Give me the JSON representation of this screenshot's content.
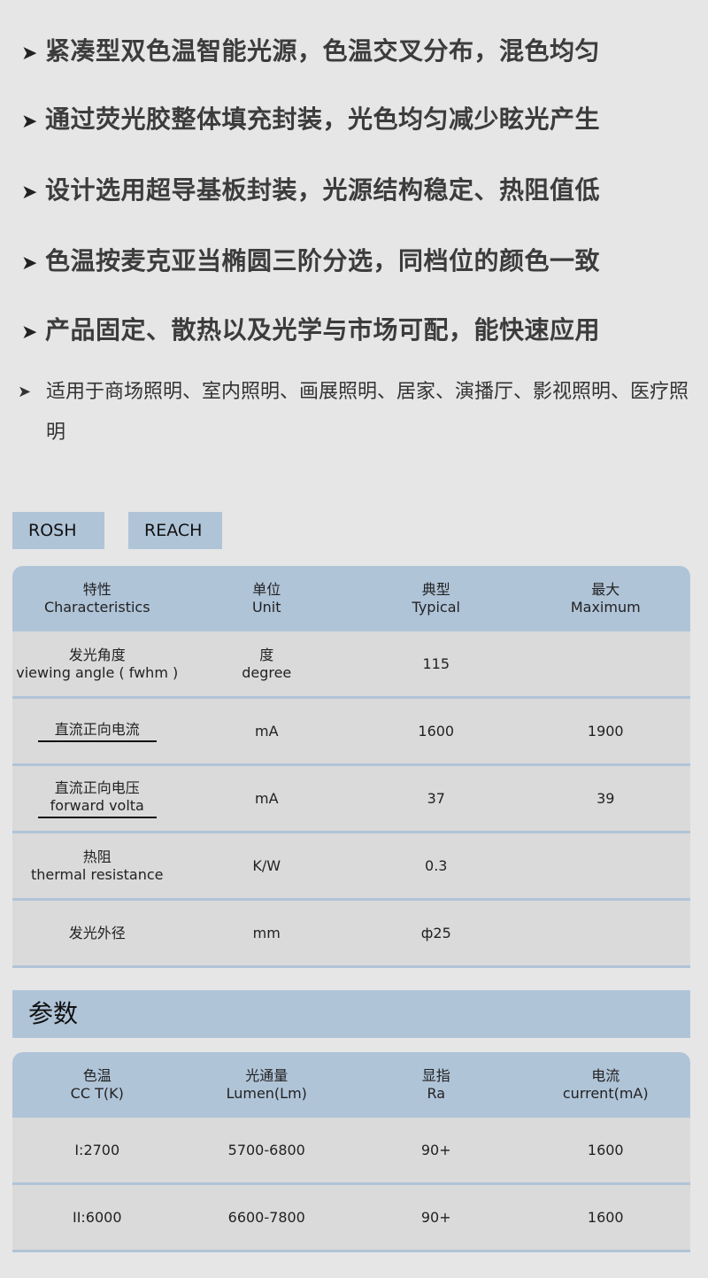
{
  "features": [
    "紧凑型双色温智能光源，色温交叉分布，混色均匀",
    "通过荧光胶整体填充封装，光色均匀减少眩光产生",
    "设计选用超导基板封装，光源结构稳定、热阻值低",
    "色温按麦克亚当椭圆三阶分选，同档位的颜色一致",
    "产品固定、散热以及光学与市场可配，能快速应用"
  ],
  "feature_applications": "适用于商场照明、室内照明、画展照明、居家、演播厅、影视照明、医疗照明",
  "arrow": "➤",
  "badges": [
    "ROSH",
    "REACH"
  ],
  "spec_table": {
    "headers": [
      [
        "特性",
        "Characteristics"
      ],
      [
        "单位",
        "Unit"
      ],
      [
        "典型",
        "Typical"
      ],
      [
        "最大",
        "Maximum"
      ]
    ],
    "rows": [
      [
        [
          "发光角度",
          "viewing angle ( fwhm )"
        ],
        [
          "度",
          "degree"
        ],
        "115",
        ""
      ],
      [
        [
          "直流正向电流",
          ""
        ],
        "mA",
        "1600",
        "1900"
      ],
      [
        [
          "直流正向电压",
          "forward volta"
        ],
        "mA",
        "37",
        "39"
      ],
      [
        [
          "热阻",
          "thermal resistance"
        ],
        "K/W",
        "0.3",
        ""
      ],
      [
        [
          "发光外径",
          ""
        ],
        "mm",
        "ф25",
        ""
      ]
    ]
  },
  "section_title": "参数",
  "param_table": {
    "headers": [
      [
        "色温",
        "CC T(K)"
      ],
      [
        "光通量",
        "Lumen(Lm)"
      ],
      [
        "显指",
        "Ra"
      ],
      [
        "电流",
        "current(mA)"
      ]
    ],
    "rows": [
      [
        "I:2700",
        "5700-6800",
        "90+",
        "1600"
      ],
      [
        "II:6000",
        "6600-7800",
        "90+",
        "1600"
      ]
    ]
  },
  "colors": {
    "background": "#e6e6e6",
    "header": "#b0c4d8",
    "row": "#dadada"
  }
}
